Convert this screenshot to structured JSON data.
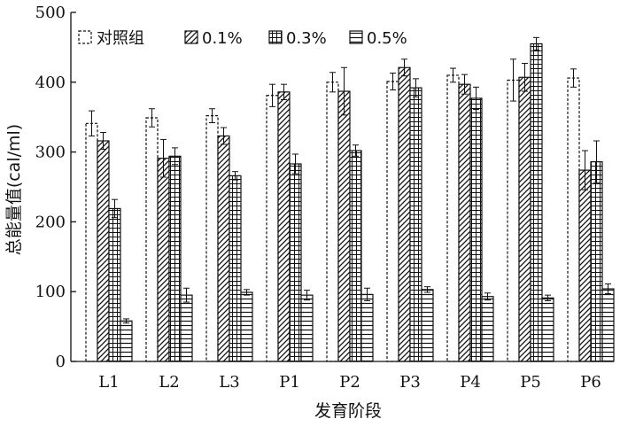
{
  "chart_data": {
    "type": "bar",
    "title": "",
    "xlabel": "发育阶段",
    "ylabel": "总能量值(cal/ml)",
    "ylim": [
      0,
      500
    ],
    "yticks": [
      0,
      100,
      200,
      300,
      400,
      500
    ],
    "categories": [
      "L1",
      "L2",
      "L3",
      "P1",
      "P2",
      "P3",
      "P4",
      "P5",
      "P6"
    ],
    "legend_position": "top-left",
    "grid": false,
    "series": [
      {
        "name": "对照组",
        "pattern": "dashed-outline",
        "values": [
          341,
          349,
          352,
          381,
          400,
          401,
          410,
          403,
          406
        ],
        "errors": [
          18,
          13,
          10,
          16,
          14,
          12,
          10,
          30,
          13
        ]
      },
      {
        "name": "0.1%",
        "pattern": "diagonal-hatch",
        "values": [
          316,
          291,
          323,
          386,
          387,
          421,
          397,
          407,
          274
        ],
        "errors": [
          12,
          27,
          12,
          11,
          34,
          12,
          14,
          20,
          28
        ]
      },
      {
        "name": "0.3%",
        "pattern": "grid-hatch",
        "values": [
          219,
          294,
          266,
          283,
          302,
          392,
          377,
          455,
          286
        ],
        "errors": [
          13,
          12,
          6,
          14,
          8,
          13,
          16,
          9,
          30
        ]
      },
      {
        "name": "0.5%",
        "pattern": "horizontal-hatch",
        "values": [
          58,
          95,
          99,
          95,
          96,
          103,
          93,
          91,
          104
        ],
        "errors": [
          3,
          10,
          4,
          7,
          9,
          4,
          5,
          4,
          7
        ]
      }
    ]
  }
}
